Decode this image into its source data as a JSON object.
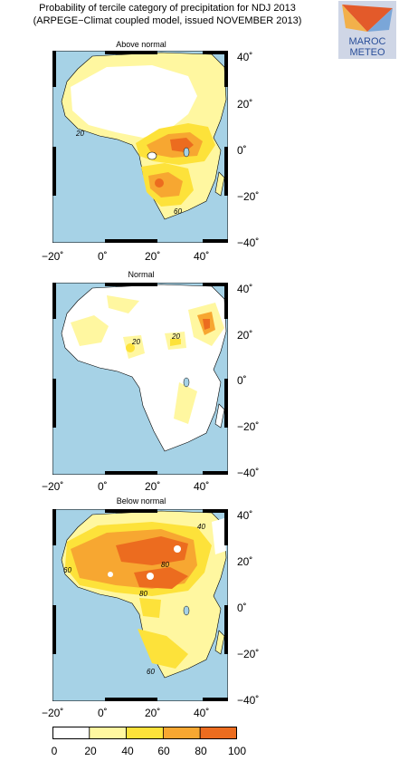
{
  "title": {
    "line1": "Probability of tercile category of precipitation for NDJ 2013",
    "line2": "(ARPEGE−Climat coupled model, issued NOVEMBER 2013)"
  },
  "logo": {
    "line1": "MAROC",
    "line2": "METEO"
  },
  "panels": [
    {
      "title": "Above normal",
      "contour_labels": [
        "20",
        "60"
      ]
    },
    {
      "title": "Normal",
      "contour_labels": [
        "20",
        "20"
      ]
    },
    {
      "title": "Below normal",
      "contour_labels": [
        "40",
        "60",
        "80",
        "80",
        "60"
      ]
    }
  ],
  "axes": {
    "x_ticks": [
      "−20˚",
      "0˚",
      "20˚",
      "40˚"
    ],
    "y_ticks": [
      "40˚",
      "20˚",
      "0˚",
      "−20˚",
      "−40˚"
    ]
  },
  "colorbar": {
    "labels": [
      "0",
      "20",
      "40",
      "60",
      "80",
      "100"
    ],
    "colors": [
      "#ffffff",
      "#fff7a0",
      "#fde23a",
      "#f7a731",
      "#ec6c1f"
    ]
  },
  "colors": {
    "ocean": "#a6d2e6",
    "land_low": "#ffffff"
  }
}
